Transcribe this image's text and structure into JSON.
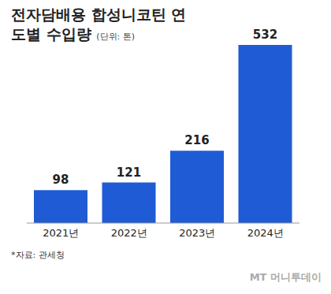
{
  "chart_data": {
    "type": "bar",
    "title": "전자담배용 합성니코틴 연도별 수입량",
    "subtitle": "(단위: 톤)",
    "categories": [
      "2021년",
      "2022년",
      "2023년",
      "2024년"
    ],
    "values": [
      98,
      121,
      216,
      532
    ],
    "color": "#1f5bd4",
    "ylim": [
      0,
      532
    ],
    "grid": false,
    "data_labels": true,
    "tick_labels": "x",
    "source": "*자료: 관세청",
    "credit": "MT 머니투데이"
  }
}
